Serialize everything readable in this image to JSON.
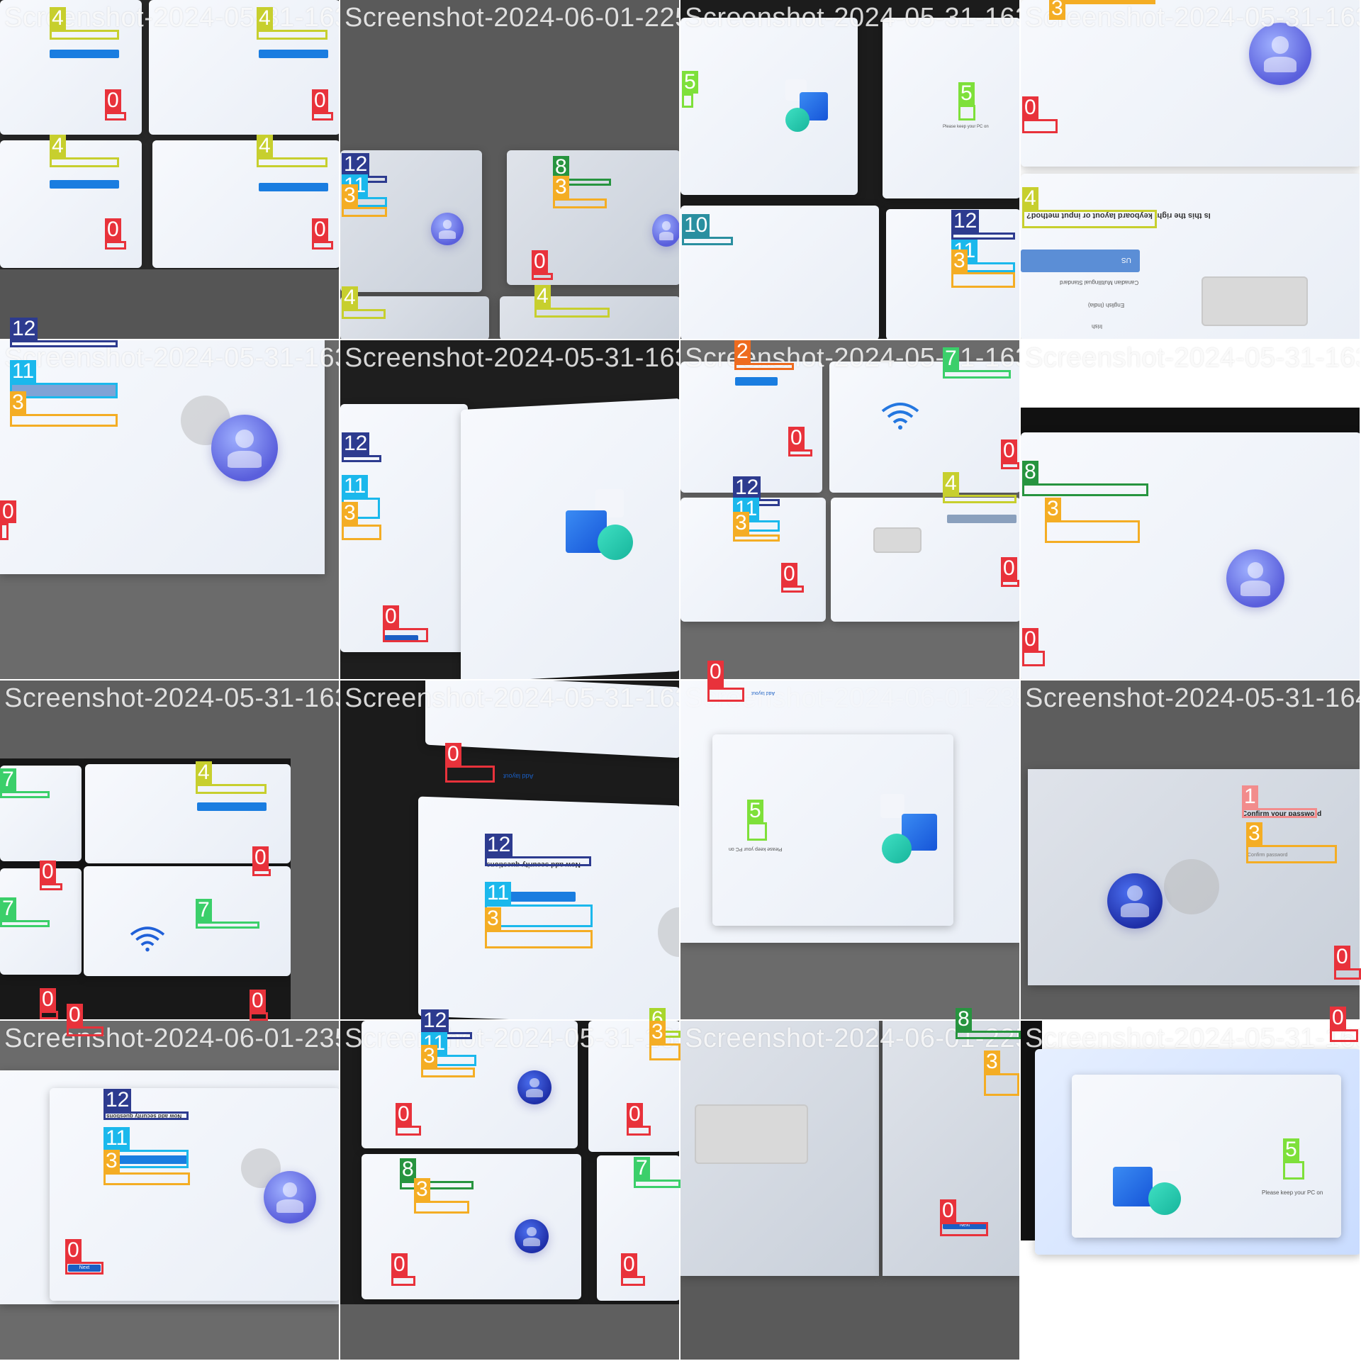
{
  "grid": {
    "rows": 4,
    "cols": 4
  },
  "label_colors": {
    "0": "#e8323b",
    "1": "#f28c8c",
    "2": "#ee6b1f",
    "3": "#f4ad24",
    "4": "#c7cf2e",
    "5": "#7ee03a",
    "6": "#a8d62c",
    "7": "#3bcf6a",
    "8": "#27943f",
    "10": "#2a8fa0",
    "11": "#1bb8ec",
    "12": "#2d3b8f"
  },
  "tiles": [
    {
      "title": "Screenshot-2024-05-31-163",
      "title_overlay": "4  4",
      "annotations": [
        {
          "label": "4"
        },
        {
          "label": "4"
        },
        {
          "label": "0"
        },
        {
          "label": "0"
        },
        {
          "label": "4"
        },
        {
          "label": "4"
        },
        {
          "label": "0"
        },
        {
          "label": "0"
        }
      ]
    },
    {
      "title": "Screenshot-2024-06-01-225",
      "annotations": [
        {
          "label": "12"
        },
        {
          "label": "11"
        },
        {
          "label": "3"
        },
        {
          "label": "8"
        },
        {
          "label": "3"
        },
        {
          "label": "0"
        },
        {
          "label": "4"
        },
        {
          "label": "4"
        }
      ]
    },
    {
      "title": "Screenshot-2024-05-31-163",
      "texts": [
        "Please keep your PC on"
      ],
      "annotations": [
        {
          "label": "5"
        },
        {
          "label": "5"
        },
        {
          "label": "10"
        },
        {
          "label": "12"
        },
        {
          "label": "11"
        },
        {
          "label": "3"
        }
      ]
    },
    {
      "title": "Screenshot-2024-05-31-163",
      "texts": [
        "Is this the right keyboard layout or input method?",
        "US",
        "Canadian Multilingual Standard",
        "English (India)",
        "Irish"
      ],
      "annotations": [
        {
          "label": "3"
        },
        {
          "label": "0"
        },
        {
          "label": "4"
        }
      ]
    },
    {
      "title": "Screenshot-2024-05-31-163",
      "annotations": [
        {
          "label": "12"
        },
        {
          "label": "11"
        },
        {
          "label": "3"
        },
        {
          "label": "0"
        }
      ]
    },
    {
      "title": "Screenshot-2024-05-31-163",
      "annotations": [
        {
          "label": "12"
        },
        {
          "label": "11"
        },
        {
          "label": "3"
        },
        {
          "label": "0"
        }
      ]
    },
    {
      "title": "Screenshot-2024-05-31-163",
      "annotations": [
        {
          "label": "2"
        },
        {
          "label": "7"
        },
        {
          "label": "0"
        },
        {
          "label": "0"
        },
        {
          "label": "12"
        },
        {
          "label": "11"
        },
        {
          "label": "3"
        },
        {
          "label": "4"
        },
        {
          "label": "0"
        },
        {
          "label": "0"
        }
      ]
    },
    {
      "title": "Screenshot-2024-05-31-163",
      "annotations": [
        {
          "label": "8"
        },
        {
          "label": "3"
        },
        {
          "label": "0"
        }
      ]
    },
    {
      "title": "Screenshot-2024-05-31-163",
      "annotations": [
        {
          "label": "7"
        },
        {
          "label": "4"
        },
        {
          "label": "0"
        },
        {
          "label": "0"
        },
        {
          "label": "7"
        },
        {
          "label": "7"
        },
        {
          "label": "0"
        },
        {
          "label": "0"
        },
        {
          "label": "0"
        }
      ]
    },
    {
      "title": "Screenshot-2024-05-31-163",
      "texts": [
        "Add layout",
        "Now add security questions",
        "Security question (1 of 3)",
        "Your answer"
      ],
      "annotations": [
        {
          "label": "0"
        },
        {
          "label": "12"
        },
        {
          "label": "11"
        },
        {
          "label": "3"
        }
      ]
    },
    {
      "title": "Screenshot-2024-06-01-235",
      "texts": [
        "Add layout",
        "Please keep your PC on"
      ],
      "annotations": [
        {
          "label": "0"
        },
        {
          "label": "5"
        }
      ]
    },
    {
      "title": "Screenshot-2024-05-31-164",
      "texts": [
        "Confirm your password",
        "Confirm password"
      ],
      "annotations": [
        {
          "label": "1"
        },
        {
          "label": "3"
        },
        {
          "label": "0"
        }
      ]
    },
    {
      "title": "Screenshot-2024-06-01-235",
      "texts": [
        "Now add security questions",
        "Security question (1 of 3)",
        "Your answer",
        "Next"
      ],
      "annotations": [
        {
          "label": "12"
        },
        {
          "label": "11"
        },
        {
          "label": "3"
        },
        {
          "label": "0"
        }
      ]
    },
    {
      "title": "Screenshot-2024-05-31-163",
      "annotations": [
        {
          "label": "12"
        },
        {
          "label": "11"
        },
        {
          "label": "3"
        },
        {
          "label": "6"
        },
        {
          "label": "3"
        },
        {
          "label": "0"
        },
        {
          "label": "0"
        },
        {
          "label": "8"
        },
        {
          "label": "3"
        },
        {
          "label": "7"
        },
        {
          "label": "0"
        },
        {
          "label": "0"
        }
      ]
    },
    {
      "title": "Screenshot-2024-06-01-225",
      "texts": [
        "Next"
      ],
      "annotations": [
        {
          "label": "8"
        },
        {
          "label": "3"
        },
        {
          "label": "0"
        }
      ]
    },
    {
      "title": "Screenshot-2024-05-31-163",
      "texts": [
        "Please keep your PC on"
      ],
      "annotations": [
        {
          "label": "0"
        },
        {
          "label": "5"
        }
      ]
    }
  ]
}
